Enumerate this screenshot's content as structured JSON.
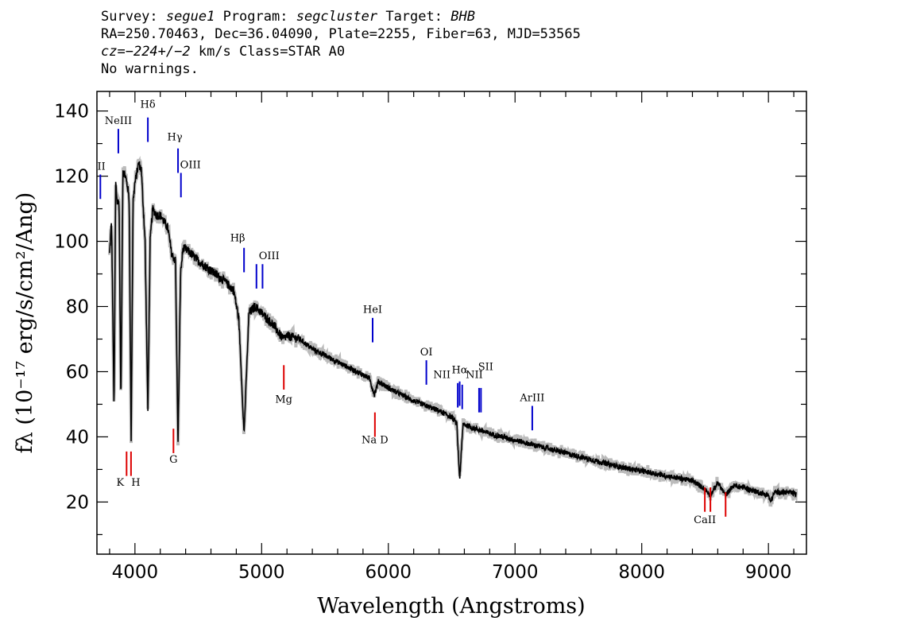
{
  "header": {
    "survey_label": "Survey:",
    "survey": "segue1",
    "program_label": "Program:",
    "program": "segcluster",
    "target_label": "Target:",
    "target": "BHB",
    "line2": "RA=250.70463, Dec=36.04090, Plate=2255, Fiber=63, MJD=53565",
    "cz_label": "cz=",
    "cz_value": "−224+/−2",
    "cz_units": " km/s Class=STAR A0",
    "line4": "No warnings."
  },
  "chart_data": {
    "type": "line",
    "title": "",
    "xlabel": "Wavelength (Angstroms)",
    "ylabel": "fλ (10⁻¹⁷ erg/s/cm²/Ang)",
    "xlim": [
      3700,
      9300
    ],
    "ylim": [
      4,
      146
    ],
    "xticks": [
      4000,
      5000,
      6000,
      7000,
      8000,
      9000
    ],
    "yticks": [
      20,
      40,
      60,
      80,
      100,
      120,
      140
    ],
    "grid": false,
    "colors": {
      "spectrum": "#000000",
      "error": "#bbbbbb",
      "emission": "#0000cc",
      "absorption": "#dd0000"
    },
    "spectrum_knots": [
      [
        3800,
        96
      ],
      [
        3815,
        106
      ],
      [
        3822,
        88
      ],
      [
        3835,
        48
      ],
      [
        3848,
        118
      ],
      [
        3860,
        112
      ],
      [
        3875,
        112
      ],
      [
        3889,
        50
      ],
      [
        3905,
        122
      ],
      [
        3925,
        120
      ],
      [
        3945,
        116
      ],
      [
        3955,
        112
      ],
      [
        3970,
        38
      ],
      [
        3985,
        112
      ],
      [
        4000,
        118
      ],
      [
        4030,
        124
      ],
      [
        4050,
        122
      ],
      [
        4080,
        100
      ],
      [
        4102,
        48
      ],
      [
        4120,
        100
      ],
      [
        4140,
        110
      ],
      [
        4170,
        108
      ],
      [
        4200,
        108
      ],
      [
        4230,
        106
      ],
      [
        4260,
        104
      ],
      [
        4290,
        96
      ],
      [
        4320,
        94
      ],
      [
        4340,
        38
      ],
      [
        4360,
        90
      ],
      [
        4380,
        98
      ],
      [
        4420,
        97
      ],
      [
        4500,
        94
      ],
      [
        4600,
        91
      ],
      [
        4700,
        88
      ],
      [
        4780,
        85
      ],
      [
        4820,
        76
      ],
      [
        4861,
        41
      ],
      [
        4900,
        78
      ],
      [
        4950,
        80
      ],
      [
        5000,
        78
      ],
      [
        5100,
        74
      ],
      [
        5167,
        70
      ],
      [
        5200,
        71
      ],
      [
        5300,
        70
      ],
      [
        5400,
        67
      ],
      [
        5500,
        65
      ],
      [
        5600,
        63
      ],
      [
        5700,
        61
      ],
      [
        5800,
        59
      ],
      [
        5850,
        58
      ],
      [
        5890,
        53
      ],
      [
        5920,
        57
      ],
      [
        6000,
        55
      ],
      [
        6100,
        53
      ],
      [
        6200,
        51
      ],
      [
        6300,
        49.5
      ],
      [
        6400,
        48
      ],
      [
        6500,
        46
      ],
      [
        6540,
        44
      ],
      [
        6563,
        27
      ],
      [
        6590,
        44
      ],
      [
        6650,
        43
      ],
      [
        6800,
        41
      ],
      [
        7000,
        39
      ],
      [
        7200,
        37
      ],
      [
        7400,
        35
      ],
      [
        7600,
        33
      ],
      [
        7800,
        31
      ],
      [
        8000,
        29.5
      ],
      [
        8200,
        28
      ],
      [
        8400,
        26.5
      ],
      [
        8498,
        24
      ],
      [
        8542,
        22
      ],
      [
        8600,
        26
      ],
      [
        8662,
        22
      ],
      [
        8720,
        25
      ],
      [
        8800,
        24.5
      ],
      [
        9000,
        22
      ],
      [
        9015,
        20
      ],
      [
        9050,
        23
      ],
      [
        9150,
        23
      ],
      [
        9220,
        22.5
      ]
    ],
    "emission_lines": [
      {
        "label": "OII",
        "wavelength": 3727,
        "y0": 113,
        "y1": 120.5,
        "label_y": 122,
        "label_dx": -4
      },
      {
        "label": "NeIII",
        "wavelength": 3869,
        "y0": 127,
        "y1": 134.5,
        "label_y": 136,
        "label_dx": 0
      },
      {
        "label": "Hδ",
        "wavelength": 4102,
        "y0": 130.5,
        "y1": 138,
        "label_y": 141,
        "label_dx": 0
      },
      {
        "label": "Hγ",
        "wavelength": 4340,
        "y0": 121,
        "y1": 128.5,
        "label_y": 131,
        "label_dx": -4
      },
      {
        "label": "OIII",
        "wavelength": 4363,
        "y0": 113.5,
        "y1": 121,
        "label_y": 122.5,
        "label_dx": 12
      },
      {
        "label": "Hβ",
        "wavelength": 4861,
        "y0": 90.5,
        "y1": 98,
        "label_y": 100,
        "label_dx": -8
      },
      {
        "label": "OIII",
        "wavelength": 4959,
        "y0": 85.5,
        "y1": 93,
        "label_y": 94.5,
        "label_dx": 16
      },
      {
        "label": "OIII",
        "wavelength": 5007,
        "y0": 85.5,
        "y1": 93,
        "label_y": null,
        "label_dx": 0
      },
      {
        "label": "HeI",
        "wavelength": 5876,
        "y0": 69,
        "y1": 76.5,
        "label_y": 78,
        "label_dx": 0
      },
      {
        "label": "OI",
        "wavelength": 6300,
        "y0": 56,
        "y1": 63.5,
        "label_y": 65,
        "label_dx": 0
      },
      {
        "label": "NII",
        "wavelength": 6548,
        "y0": 49,
        "y1": 56.5,
        "label_y": 58,
        "label_dx": -20
      },
      {
        "label": "Hα",
        "wavelength": 6563,
        "y0": 49.5,
        "y1": 57,
        "label_y": 59.5,
        "label_dx": 0
      },
      {
        "label": "NII",
        "wavelength": 6583,
        "y0": 48.5,
        "y1": 56,
        "label_y": null,
        "label_dx": 0
      },
      {
        "label": "NII",
        "wavelength": 6716,
        "y0": 47.5,
        "y1": 55,
        "label_y": 58,
        "label_dx": -6
      },
      {
        "label": "SII",
        "wavelength": 6731,
        "y0": 47.5,
        "y1": 55,
        "label_y": 60.5,
        "label_dx": 6
      },
      {
        "label": "ArIII",
        "wavelength": 7136,
        "y0": 42,
        "y1": 49.5,
        "label_y": 51,
        "label_dx": 0
      }
    ],
    "absorption_lines": [
      {
        "label": "K",
        "wavelength": 3934,
        "y0": 28,
        "y1": 35.5,
        "label_y": 25,
        "label_dx": -8
      },
      {
        "label": "H",
        "wavelength": 3969,
        "y0": 28,
        "y1": 35.5,
        "label_y": 25,
        "label_dx": 6
      },
      {
        "label": "G",
        "wavelength": 4304,
        "y0": 35,
        "y1": 42.5,
        "label_y": 32,
        "label_dx": 0
      },
      {
        "label": "Mg",
        "wavelength": 5175,
        "y0": 54.5,
        "y1": 62,
        "label_y": 50.5,
        "label_dx": 0
      },
      {
        "label": "Na D",
        "wavelength": 5894,
        "y0": 40,
        "y1": 47.5,
        "label_y": 38,
        "label_dx": 0
      },
      {
        "label": "CaII",
        "wavelength": 8498,
        "y0": 17,
        "y1": 24.5,
        "label_y": 13.5,
        "label_dx": 0
      },
      {
        "label": "",
        "wavelength": 8542,
        "y0": 17,
        "y1": 24.5,
        "label_y": null,
        "label_dx": 0
      },
      {
        "label": "",
        "wavelength": 8662,
        "y0": 15.5,
        "y1": 23,
        "label_y": null,
        "label_dx": 0
      }
    ]
  }
}
